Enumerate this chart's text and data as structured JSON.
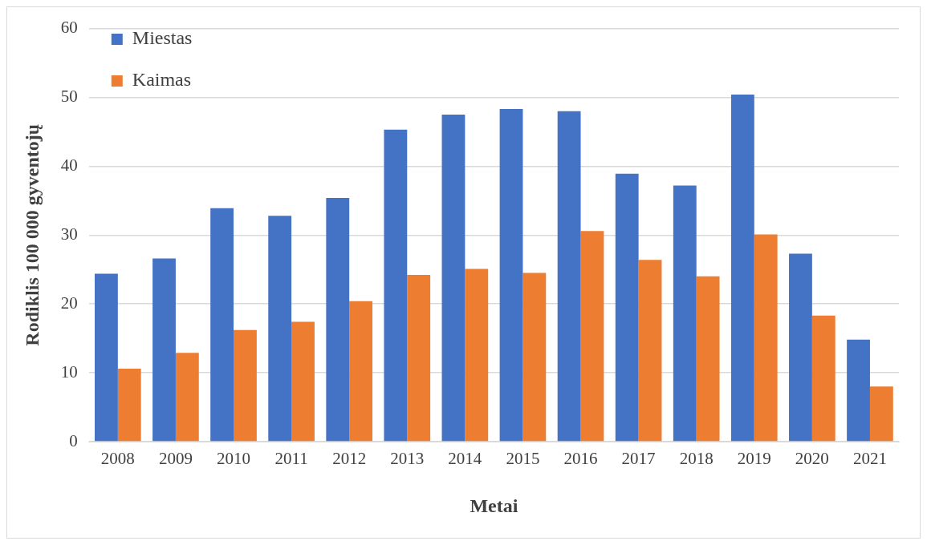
{
  "chart_data": {
    "type": "bar",
    "xlabel": "Metai",
    "ylabel": "Rodiklis 100 000 gyventojų",
    "categories": [
      "2008",
      "2009",
      "2010",
      "2011",
      "2012",
      "2013",
      "2014",
      "2015",
      "2016",
      "2017",
      "2018",
      "2019",
      "2020",
      "2021"
    ],
    "series": [
      {
        "name": "Miestas",
        "color": "#4472c4",
        "values": [
          24.4,
          26.6,
          33.9,
          32.8,
          35.4,
          45.3,
          47.5,
          48.3,
          48.0,
          38.9,
          37.2,
          50.4,
          27.3,
          14.8
        ]
      },
      {
        "name": "Kaimas",
        "color": "#ed7d31",
        "values": [
          10.6,
          12.9,
          16.2,
          17.4,
          20.4,
          24.2,
          25.1,
          24.5,
          30.6,
          26.4,
          24.0,
          30.1,
          18.3,
          8.0
        ]
      }
    ],
    "ylim": [
      0,
      60
    ],
    "yticks": [
      0,
      10,
      20,
      30,
      40,
      50,
      60
    ],
    "grid": "y",
    "legend": "top left"
  }
}
